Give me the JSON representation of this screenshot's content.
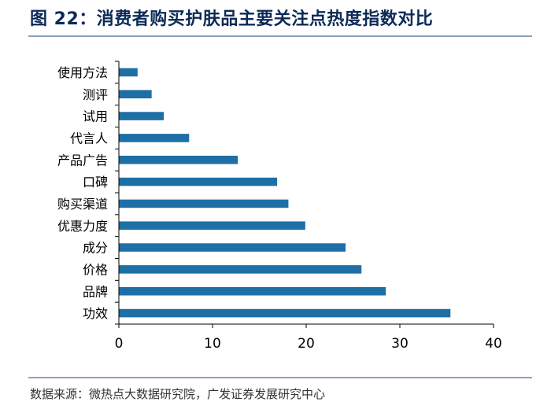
{
  "title": "图 22：消费者购买护肤品主要关注点热度指数对比",
  "source": "数据来源：微热点大数据研究院，广发证券发展研究中心",
  "colors": {
    "bar": "#1e6fa6",
    "axis": "#000000",
    "title": "#0d2a57"
  },
  "chart_data": {
    "type": "bar",
    "orientation": "horizontal",
    "categories": [
      "使用方法",
      "测评",
      "试用",
      "代言人",
      "产品广告",
      "口碑",
      "购买渠道",
      "优惠力度",
      "成分",
      "价格",
      "品牌",
      "功效"
    ],
    "values": [
      2.0,
      3.5,
      4.8,
      7.5,
      12.7,
      16.9,
      18.1,
      19.9,
      24.2,
      25.9,
      28.5,
      35.4
    ],
    "xlim": [
      0,
      40
    ],
    "xticks": [
      0,
      10,
      20,
      30,
      40
    ],
    "xlabel": "",
    "ylabel": "",
    "grid": false
  }
}
